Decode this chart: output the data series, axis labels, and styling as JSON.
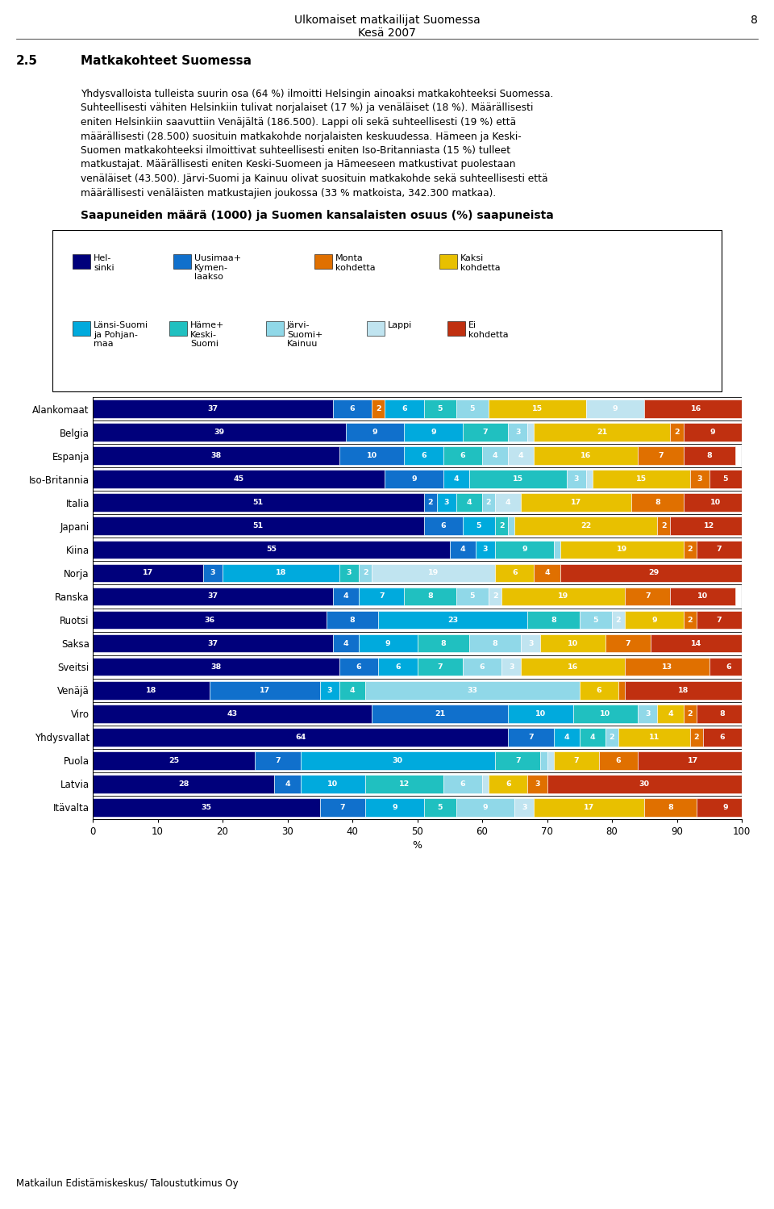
{
  "page_header_line1": "Ulkomaiset matkailijat Suomessa",
  "page_header_line2": "Kesä 2007",
  "page_number": "8",
  "section_num": "2.5",
  "section_title": "Matkakohteet Suomessa",
  "body_text": "Yhdysvalloista tulleista suurin osa (64 %) ilmoitti Helsingin ainoaksi matkakohteeksi Suomessa.\nSuhteellisesti vähiten Helsinkiin tulivat norjalaiset (17 %) ja venäläiset (18 %). Määrällisesti\neniten Helsinkiin saavuttiin Venäjältä (186.500). Lappi oli sekä suhteellisesti (19 %) että\nmäärällisesti (28.500) suosituin matkakohde norjalaisten keskuudessa. Hämeen ja Keski-\nSuomen matkakohteeksi ilmoittivat suhteellisesti eniten Iso-Britanniasta (15 %) tulleet\nmatkustajat. Määrällisesti eniten Keski-Suomeen ja Hämeeseen matkustivat puolestaan\nvenäläiset (43.500). Järvi-Suomi ja Kainuu olivat suosituin matkakohde sekä suhteellisesti että\nmäärällisesti venäläisten matkustajien joukossa (33 % matkoista, 342.300 matkaa).",
  "chart_title": "Saapuneiden määrä (1000) ja Suomen kansalaisten osuus (%) saapuneista",
  "footer": "Matkailun Edistämiskeskus/ Taloustutkimus Oy",
  "legend_row1": [
    {
      "label": "Hel-\nsinki",
      "color": "#00007B"
    },
    {
      "label": "Uusimaa+\nKymen-\nlaakso",
      "color": "#1070CC"
    },
    {
      "label": "Monta\nkohdetta",
      "color": "#E07000"
    },
    {
      "label": "Kaksi\nkohdetta",
      "color": "#E8C000"
    }
  ],
  "legend_row2": [
    {
      "label": "Länsi-Suomi\nja Pohjan-\nmaa",
      "color": "#00AADD"
    },
    {
      "label": "Häme+\nKeski-\nSuomi",
      "color": "#20C0C0"
    },
    {
      "label": "Järvi-\nSuomi+\nKainuu",
      "color": "#90D8E8"
    },
    {
      "label": "Lappi",
      "color": "#C0E4F0"
    },
    {
      "label": "Ei\nkohdetta",
      "color": "#C03010"
    }
  ],
  "categories": [
    "Alankomaat",
    "Belgia",
    "Espanja",
    "Iso-Britannia",
    "Italia",
    "Japani",
    "Kiina",
    "Norja",
    "Ranska",
    "Ruotsi",
    "Saksa",
    "Sveitsi",
    "Venäjä",
    "Viro",
    "Yhdysvallat",
    "Puola",
    "Latvia",
    "Itävalta"
  ],
  "bar_segments": {
    "Alankomaat": [
      {
        "v": 37,
        "c": "#00007B"
      },
      {
        "v": 6,
        "c": "#1070CC"
      },
      {
        "v": 2,
        "c": "#E07000"
      },
      {
        "v": 6,
        "c": "#00AADD"
      },
      {
        "v": 5,
        "c": "#20C0C0"
      },
      {
        "v": 5,
        "c": "#90D8E8"
      },
      {
        "v": 15,
        "c": "#E8C000"
      },
      {
        "v": 9,
        "c": "#C0E4F0"
      },
      {
        "v": 16,
        "c": "#C03010"
      }
    ],
    "Belgia": [
      {
        "v": 39,
        "c": "#00007B"
      },
      {
        "v": 9,
        "c": "#1070CC"
      },
      {
        "v": 9,
        "c": "#00AADD"
      },
      {
        "v": 7,
        "c": "#20C0C0"
      },
      {
        "v": 3,
        "c": "#90D8E8"
      },
      {
        "v": 1,
        "c": "#C0E4F0"
      },
      {
        "v": 21,
        "c": "#E8C000"
      },
      {
        "v": 2,
        "c": "#E07000"
      },
      {
        "v": 9,
        "c": "#C03010"
      }
    ],
    "Espanja": [
      {
        "v": 38,
        "c": "#00007B"
      },
      {
        "v": 10,
        "c": "#1070CC"
      },
      {
        "v": 6,
        "c": "#00AADD"
      },
      {
        "v": 6,
        "c": "#20C0C0"
      },
      {
        "v": 4,
        "c": "#90D8E8"
      },
      {
        "v": 4,
        "c": "#C0E4F0"
      },
      {
        "v": 16,
        "c": "#E8C000"
      },
      {
        "v": 7,
        "c": "#E07000"
      },
      {
        "v": 8,
        "c": "#C03010"
      }
    ],
    "Iso-Britannia": [
      {
        "v": 45,
        "c": "#00007B"
      },
      {
        "v": 9,
        "c": "#1070CC"
      },
      {
        "v": 4,
        "c": "#00AADD"
      },
      {
        "v": 15,
        "c": "#20C0C0"
      },
      {
        "v": 3,
        "c": "#90D8E8"
      },
      {
        "v": 1,
        "c": "#C0E4F0"
      },
      {
        "v": 15,
        "c": "#E8C000"
      },
      {
        "v": 3,
        "c": "#E07000"
      },
      {
        "v": 5,
        "c": "#C03010"
      }
    ],
    "Italia": [
      {
        "v": 51,
        "c": "#00007B"
      },
      {
        "v": 2,
        "c": "#1070CC"
      },
      {
        "v": 3,
        "c": "#00AADD"
      },
      {
        "v": 4,
        "c": "#20C0C0"
      },
      {
        "v": 2,
        "c": "#90D8E8"
      },
      {
        "v": 4,
        "c": "#C0E4F0"
      },
      {
        "v": 17,
        "c": "#E8C000"
      },
      {
        "v": 8,
        "c": "#E07000"
      },
      {
        "v": 10,
        "c": "#C03010"
      }
    ],
    "Japani": [
      {
        "v": 51,
        "c": "#00007B"
      },
      {
        "v": 6,
        "c": "#1070CC"
      },
      {
        "v": 5,
        "c": "#00AADD"
      },
      {
        "v": 2,
        "c": "#20C0C0"
      },
      {
        "v": 1,
        "c": "#90D8E8"
      },
      {
        "v": 22,
        "c": "#E8C000"
      },
      {
        "v": 2,
        "c": "#E07000"
      },
      {
        "v": 12,
        "c": "#C03010"
      }
    ],
    "Kiina": [
      {
        "v": 55,
        "c": "#00007B"
      },
      {
        "v": 4,
        "c": "#1070CC"
      },
      {
        "v": 3,
        "c": "#00AADD"
      },
      {
        "v": 9,
        "c": "#20C0C0"
      },
      {
        "v": 1,
        "c": "#90D8E8"
      },
      {
        "v": 19,
        "c": "#E8C000"
      },
      {
        "v": 2,
        "c": "#E07000"
      },
      {
        "v": 7,
        "c": "#C03010"
      }
    ],
    "Norja": [
      {
        "v": 17,
        "c": "#00007B"
      },
      {
        "v": 3,
        "c": "#1070CC"
      },
      {
        "v": 18,
        "c": "#00AADD"
      },
      {
        "v": 3,
        "c": "#20C0C0"
      },
      {
        "v": 2,
        "c": "#90D8E8"
      },
      {
        "v": 19,
        "c": "#C0E4F0"
      },
      {
        "v": 6,
        "c": "#E8C000"
      },
      {
        "v": 4,
        "c": "#E07000"
      },
      {
        "v": 29,
        "c": "#C03010"
      }
    ],
    "Ranska": [
      {
        "v": 37,
        "c": "#00007B"
      },
      {
        "v": 4,
        "c": "#1070CC"
      },
      {
        "v": 7,
        "c": "#00AADD"
      },
      {
        "v": 8,
        "c": "#20C0C0"
      },
      {
        "v": 5,
        "c": "#90D8E8"
      },
      {
        "v": 2,
        "c": "#C0E4F0"
      },
      {
        "v": 19,
        "c": "#E8C000"
      },
      {
        "v": 7,
        "c": "#E07000"
      },
      {
        "v": 10,
        "c": "#C03010"
      }
    ],
    "Ruotsi": [
      {
        "v": 36,
        "c": "#00007B"
      },
      {
        "v": 8,
        "c": "#1070CC"
      },
      {
        "v": 23,
        "c": "#00AADD"
      },
      {
        "v": 8,
        "c": "#20C0C0"
      },
      {
        "v": 5,
        "c": "#90D8E8"
      },
      {
        "v": 2,
        "c": "#C0E4F0"
      },
      {
        "v": 9,
        "c": "#E8C000"
      },
      {
        "v": 2,
        "c": "#E07000"
      },
      {
        "v": 7,
        "c": "#C03010"
      }
    ],
    "Saksa": [
      {
        "v": 37,
        "c": "#00007B"
      },
      {
        "v": 4,
        "c": "#1070CC"
      },
      {
        "v": 9,
        "c": "#00AADD"
      },
      {
        "v": 8,
        "c": "#20C0C0"
      },
      {
        "v": 8,
        "c": "#90D8E8"
      },
      {
        "v": 3,
        "c": "#C0E4F0"
      },
      {
        "v": 10,
        "c": "#E8C000"
      },
      {
        "v": 7,
        "c": "#E07000"
      },
      {
        "v": 14,
        "c": "#C03010"
      }
    ],
    "Sveitsi": [
      {
        "v": 38,
        "c": "#00007B"
      },
      {
        "v": 6,
        "c": "#1070CC"
      },
      {
        "v": 6,
        "c": "#00AADD"
      },
      {
        "v": 7,
        "c": "#20C0C0"
      },
      {
        "v": 6,
        "c": "#90D8E8"
      },
      {
        "v": 3,
        "c": "#C0E4F0"
      },
      {
        "v": 16,
        "c": "#E8C000"
      },
      {
        "v": 13,
        "c": "#E07000"
      },
      {
        "v": 6,
        "c": "#C03010"
      }
    ],
    "Venäjä": [
      {
        "v": 18,
        "c": "#00007B"
      },
      {
        "v": 17,
        "c": "#1070CC"
      },
      {
        "v": 3,
        "c": "#00AADD"
      },
      {
        "v": 4,
        "c": "#20C0C0"
      },
      {
        "v": 33,
        "c": "#90D8E8"
      },
      {
        "v": 0,
        "c": "#C0E4F0"
      },
      {
        "v": 6,
        "c": "#E8C000"
      },
      {
        "v": 1,
        "c": "#E07000"
      },
      {
        "v": 18,
        "c": "#C03010"
      }
    ],
    "Viro": [
      {
        "v": 43,
        "c": "#00007B"
      },
      {
        "v": 21,
        "c": "#1070CC"
      },
      {
        "v": 10,
        "c": "#00AADD"
      },
      {
        "v": 10,
        "c": "#20C0C0"
      },
      {
        "v": 3,
        "c": "#90D8E8"
      },
      {
        "v": 0,
        "c": "#C0E4F0"
      },
      {
        "v": 4,
        "c": "#E8C000"
      },
      {
        "v": 2,
        "c": "#E07000"
      },
      {
        "v": 8,
        "c": "#C03010"
      }
    ],
    "Yhdysvallat": [
      {
        "v": 64,
        "c": "#00007B"
      },
      {
        "v": 7,
        "c": "#1070CC"
      },
      {
        "v": 4,
        "c": "#00AADD"
      },
      {
        "v": 4,
        "c": "#20C0C0"
      },
      {
        "v": 2,
        "c": "#90D8E8"
      },
      {
        "v": 11,
        "c": "#E8C000"
      },
      {
        "v": 2,
        "c": "#E07000"
      },
      {
        "v": 6,
        "c": "#C03010"
      }
    ],
    "Puola": [
      {
        "v": 25,
        "c": "#00007B"
      },
      {
        "v": 7,
        "c": "#1070CC"
      },
      {
        "v": 30,
        "c": "#00AADD"
      },
      {
        "v": 7,
        "c": "#20C0C0"
      },
      {
        "v": 1,
        "c": "#90D8E8"
      },
      {
        "v": 1,
        "c": "#C0E4F0"
      },
      {
        "v": 7,
        "c": "#E8C000"
      },
      {
        "v": 6,
        "c": "#E07000"
      },
      {
        "v": 17,
        "c": "#C03010"
      }
    ],
    "Latvia": [
      {
        "v": 28,
        "c": "#00007B"
      },
      {
        "v": 4,
        "c": "#1070CC"
      },
      {
        "v": 10,
        "c": "#00AADD"
      },
      {
        "v": 12,
        "c": "#20C0C0"
      },
      {
        "v": 6,
        "c": "#90D8E8"
      },
      {
        "v": 1,
        "c": "#C0E4F0"
      },
      {
        "v": 6,
        "c": "#E8C000"
      },
      {
        "v": 3,
        "c": "#E07000"
      },
      {
        "v": 30,
        "c": "#C03010"
      }
    ],
    "Itävalta": [
      {
        "v": 35,
        "c": "#00007B"
      },
      {
        "v": 7,
        "c": "#1070CC"
      },
      {
        "v": 9,
        "c": "#00AADD"
      },
      {
        "v": 5,
        "c": "#20C0C0"
      },
      {
        "v": 9,
        "c": "#90D8E8"
      },
      {
        "v": 3,
        "c": "#C0E4F0"
      },
      {
        "v": 17,
        "c": "#E8C000"
      },
      {
        "v": 8,
        "c": "#E07000"
      },
      {
        "v": 9,
        "c": "#C03010"
      }
    ]
  }
}
